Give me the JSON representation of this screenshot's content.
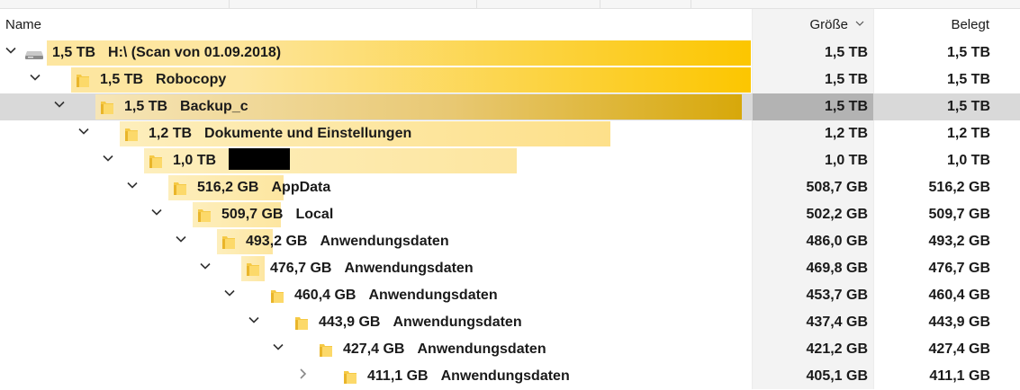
{
  "columns": {
    "name": "Name",
    "size": "Größe",
    "used": "Belegt"
  },
  "colors": {
    "bar": "#fde6a0",
    "bar_strong": "#fcc600",
    "selected_row": "#d9d9d9",
    "selected_size_cell": "#b3b3b3"
  },
  "rows": [
    {
      "depth": 0,
      "icon": "drive-icon",
      "expander": "chevron-down-icon",
      "size_text": "1,5 TB",
      "name": "H:\\ (Scan von 01.09.2018)",
      "redacted": false,
      "size": "1,5 TB",
      "used": "1,5 TB",
      "bar_fraction": 1.0,
      "selected": false
    },
    {
      "depth": 1,
      "icon": "folder-icon",
      "expander": "chevron-down-icon",
      "size_text": "1,5 TB",
      "name": "Robocopy",
      "redacted": false,
      "size": "1,5 TB",
      "used": "1,5 TB",
      "bar_fraction": 1.0,
      "selected": false
    },
    {
      "depth": 2,
      "icon": "folder-icon",
      "expander": "chevron-down-icon",
      "size_text": "1,5 TB",
      "name": "Backup_c",
      "redacted": false,
      "size": "1,5 TB",
      "used": "1,5 TB",
      "bar_fraction": 1.0,
      "selected": true
    },
    {
      "depth": 3,
      "icon": "folder-icon",
      "expander": "chevron-down-icon",
      "size_text": "1,2 TB",
      "name": "Dokumente und Einstellungen",
      "redacted": false,
      "size": "1,2 TB",
      "used": "1,2 TB",
      "bar_fraction": 0.8,
      "selected": false
    },
    {
      "depth": 4,
      "icon": "folder-icon",
      "expander": "chevron-down-icon",
      "size_text": "1,0 TB",
      "name": "",
      "redacted": true,
      "size": "1,0 TB",
      "used": "1,0 TB",
      "bar_fraction": 0.667,
      "selected": false
    },
    {
      "depth": 5,
      "icon": "folder-icon",
      "expander": "chevron-down-icon",
      "size_text": "516,2 GB",
      "name": "AppData",
      "redacted": false,
      "size": "508,7 GB",
      "used": "516,2 GB",
      "bar_fraction": 0.336,
      "selected": false
    },
    {
      "depth": 6,
      "icon": "folder-icon",
      "expander": "chevron-down-icon",
      "size_text": "509,7 GB",
      "name": "Local",
      "redacted": false,
      "size": "502,2 GB",
      "used": "509,7 GB",
      "bar_fraction": 0.332,
      "selected": false
    },
    {
      "depth": 7,
      "icon": "folder-icon",
      "expander": "chevron-down-icon",
      "size_text": "493,2 GB",
      "name": "Anwendungsdaten",
      "redacted": false,
      "size": "486,0 GB",
      "used": "493,2 GB",
      "bar_fraction": 0.321,
      "selected": false
    },
    {
      "depth": 8,
      "icon": "folder-icon",
      "expander": "chevron-down-icon",
      "size_text": "476,7 GB",
      "name": "Anwendungsdaten",
      "redacted": false,
      "size": "469,8 GB",
      "used": "476,7 GB",
      "bar_fraction": 0.31,
      "selected": false
    },
    {
      "depth": 9,
      "icon": "folder-icon",
      "expander": "chevron-down-icon",
      "size_text": "460,4 GB",
      "name": "Anwendungsdaten",
      "redacted": false,
      "size": "453,7 GB",
      "used": "460,4 GB",
      "bar_fraction": 0.3,
      "selected": false
    },
    {
      "depth": 10,
      "icon": "folder-icon",
      "expander": "chevron-down-icon",
      "size_text": "443,9 GB",
      "name": "Anwendungsdaten",
      "redacted": false,
      "size": "437,4 GB",
      "used": "443,9 GB",
      "bar_fraction": 0.289,
      "selected": false
    },
    {
      "depth": 11,
      "icon": "folder-icon",
      "expander": "chevron-down-icon",
      "size_text": "427,4 GB",
      "name": "Anwendungsdaten",
      "redacted": false,
      "size": "421,2 GB",
      "used": "427,4 GB",
      "bar_fraction": 0.278,
      "selected": false
    },
    {
      "depth": 12,
      "icon": "folder-icon",
      "expander": "chevron-right-icon",
      "size_text": "411,1 GB",
      "name": "Anwendungsdaten",
      "redacted": false,
      "size": "405,1 GB",
      "used": "411,1 GB",
      "bar_fraction": 0.268,
      "selected": false
    }
  ]
}
